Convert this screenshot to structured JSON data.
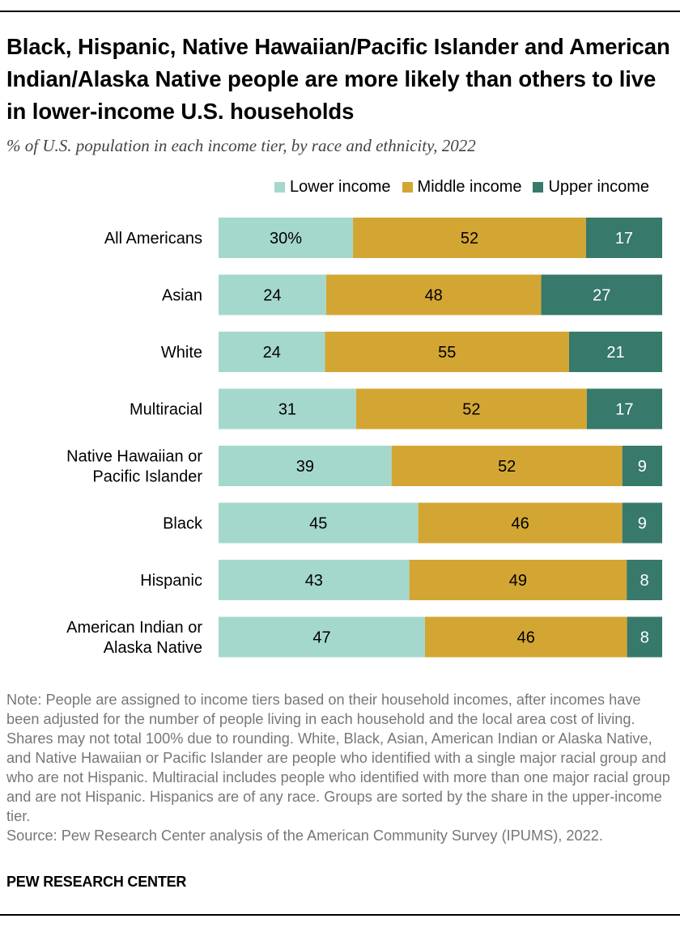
{
  "title": "Black, Hispanic, Native Hawaiian/Pacific Islander and American Indian/Alaska Native people are more likely than others to live in lower-income U.S. households",
  "subtitle": "% of U.S. population in each income tier, by race and ethnicity, 2022",
  "colors": {
    "lower": "#a5d8cc",
    "middle": "#d3a634",
    "upper": "#37796b"
  },
  "legend": [
    "Lower income",
    "Middle income",
    "Upper income"
  ],
  "chart_data": {
    "type": "bar",
    "orientation": "horizontal",
    "stacked": true,
    "categories": [
      "All Americans",
      "Asian",
      "White",
      "Multiracial",
      "Native Hawaiian or Pacific Islander",
      "Black",
      "Hispanic",
      "American Indian or Alaska Native"
    ],
    "series": [
      {
        "name": "Lower income",
        "values": [
          30,
          24,
          24,
          31,
          39,
          45,
          43,
          47
        ]
      },
      {
        "name": "Middle income",
        "values": [
          52,
          48,
          55,
          52,
          52,
          46,
          49,
          46
        ]
      },
      {
        "name": "Upper income",
        "values": [
          17,
          27,
          21,
          17,
          9,
          9,
          8,
          8
        ]
      }
    ],
    "data_labels": [
      [
        "30%",
        "52",
        "17"
      ],
      [
        "24",
        "48",
        "27"
      ],
      [
        "24",
        "55",
        "21"
      ],
      [
        "31",
        "52",
        "17"
      ],
      [
        "39",
        "52",
        "9"
      ],
      [
        "45",
        "46",
        "9"
      ],
      [
        "43",
        "49",
        "8"
      ],
      [
        "47",
        "46",
        "8"
      ]
    ],
    "xlim": [
      0,
      100
    ],
    "category_label_lines": [
      [
        "All Americans"
      ],
      [
        "Asian"
      ],
      [
        "White"
      ],
      [
        "Multiracial"
      ],
      [
        "Native Hawaiian or",
        "Pacific Islander"
      ],
      [
        "Black"
      ],
      [
        "Hispanic"
      ],
      [
        "American Indian or",
        "Alaska Native"
      ]
    ]
  },
  "note": "Note: People are assigned to income tiers based on their household incomes, after incomes have been adjusted for the number of people living in each household and the local area cost of living. Shares may not total 100% due to rounding. White, Black, Asian, American Indian or Alaska Native, and Native Hawaiian or Pacific Islander are people who identified with a single major racial group and who are not Hispanic. Multiracial includes people who identified with more than one major racial group and are not Hispanic. Hispanics are of any race. Groups are sorted by the share in the upper-income tier.",
  "source": "Source: Pew Research Center analysis of the American Community Survey (IPUMS), 2022.",
  "brand": "PEW RESEARCH CENTER"
}
